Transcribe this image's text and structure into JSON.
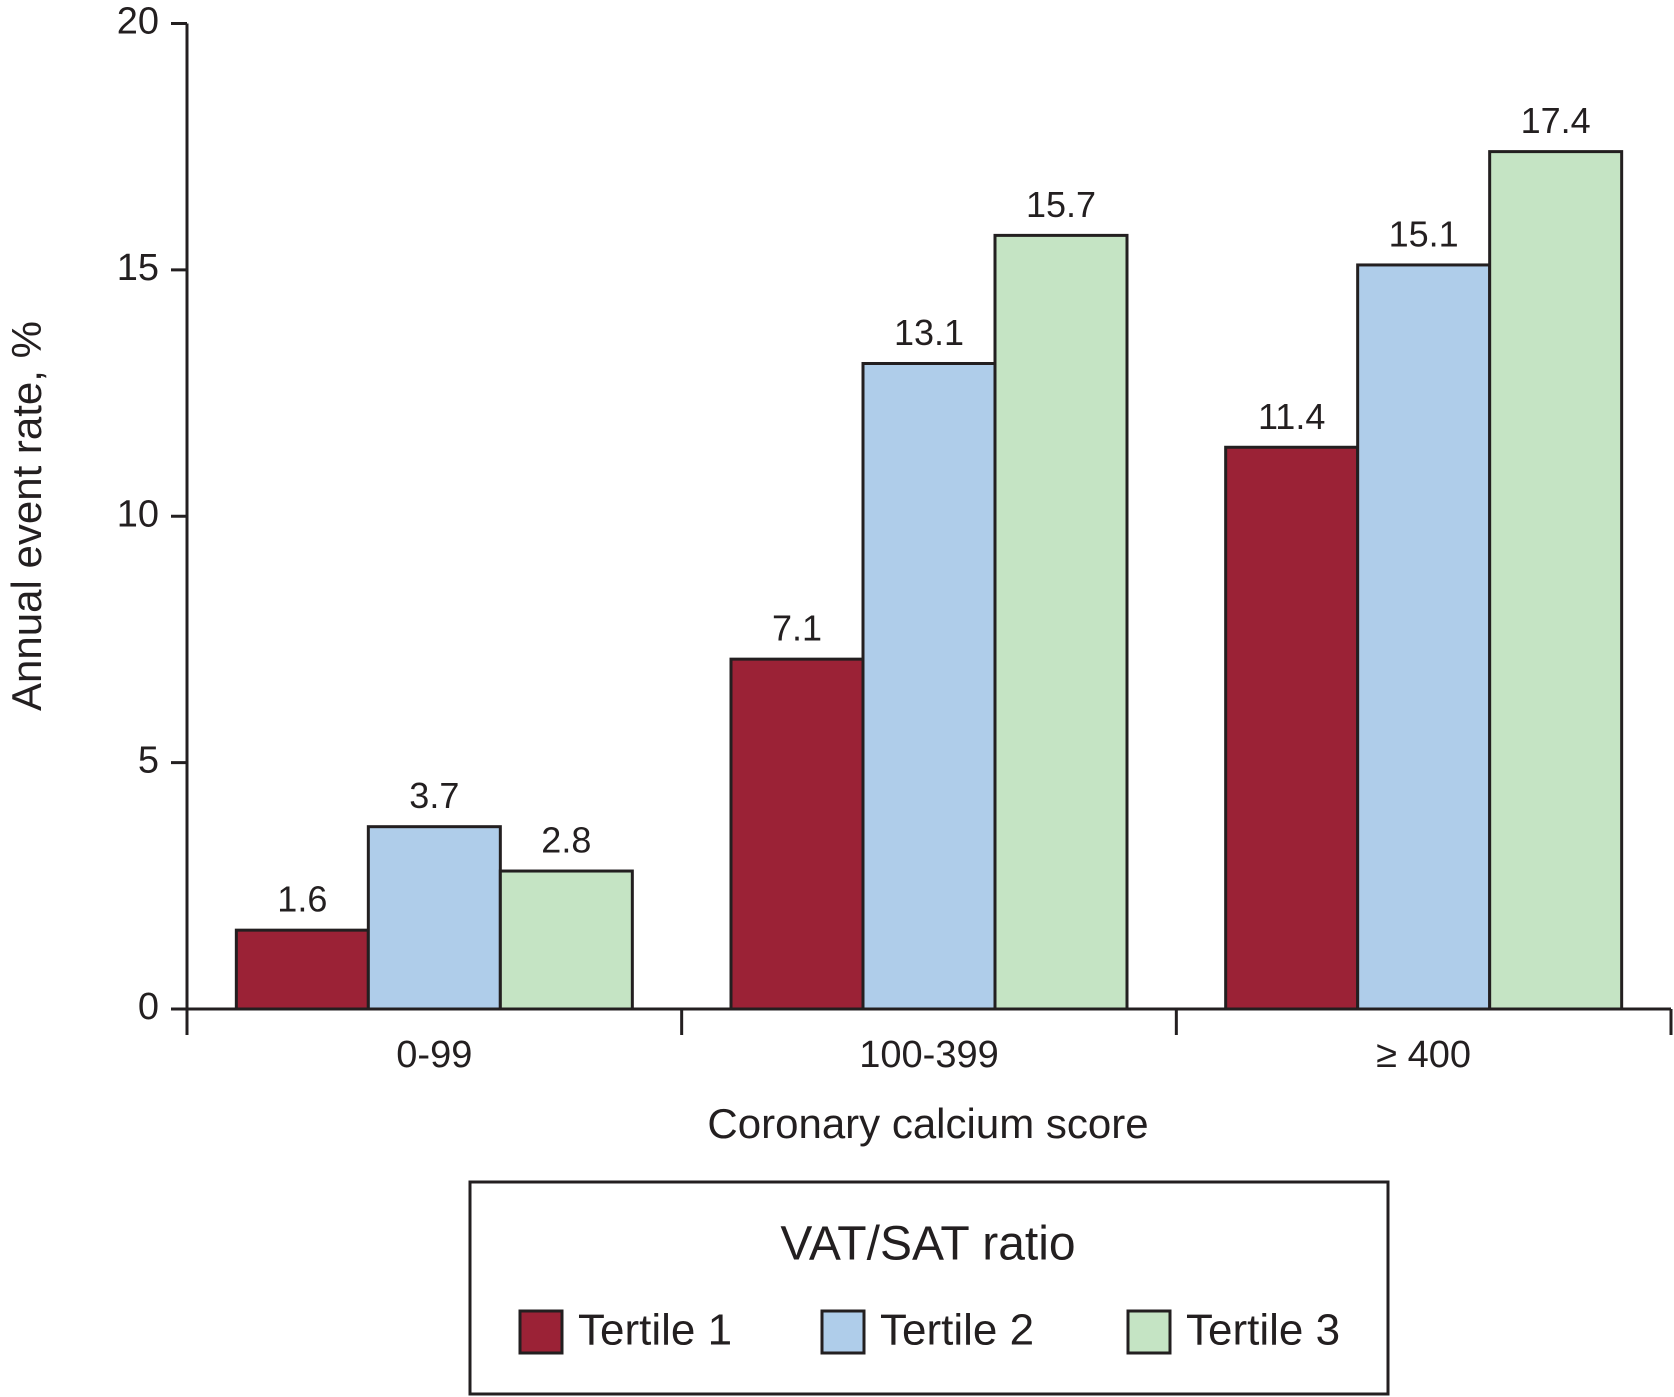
{
  "chart_data": {
    "type": "bar",
    "y_label": "Annual event rate, %",
    "x_label": "Coronary calcium score",
    "legend_title": "VAT/SAT ratio",
    "categories": [
      "0-99",
      "100-399",
      "≥ 400"
    ],
    "series": [
      {
        "name": "Tertile 1",
        "color": "#9b2236",
        "values": [
          1.6,
          7.1,
          11.4
        ]
      },
      {
        "name": "Tertile 2",
        "color": "#afcdea",
        "values": [
          3.7,
          13.1,
          15.1
        ]
      },
      {
        "name": "Tertile 3",
        "color": "#c5e4c4",
        "values": [
          2.8,
          15.7,
          17.4
        ]
      }
    ],
    "ylim": [
      0,
      20
    ],
    "yticks": [
      0,
      5,
      10,
      15,
      20
    ]
  }
}
